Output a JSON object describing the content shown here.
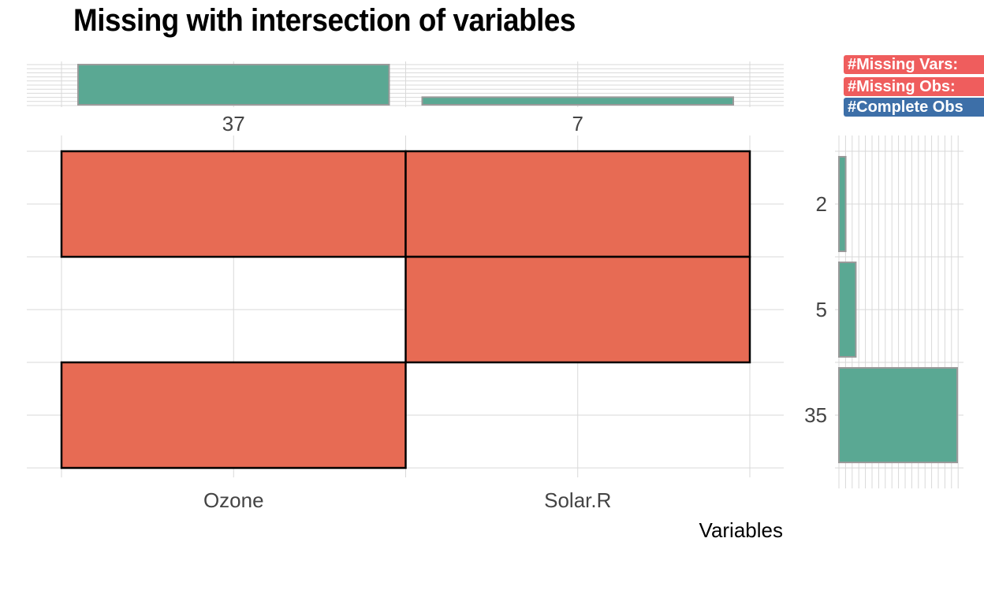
{
  "title": "Missing with intersection of variables",
  "badges": {
    "missing_vars": "#Missing Vars:",
    "missing_obs": "#Missing Obs:",
    "complete_obs": "#Complete Obs"
  },
  "colors": {
    "cell_missing": "#e76b54",
    "bar": "#5aa893",
    "bar_outline": "#9a9a9a",
    "badge_red": "#ef5d5d",
    "badge_blue": "#3d6fa8",
    "grid": "#d9d9d9",
    "text": "#444444"
  },
  "chart_data": [
    {
      "type": "heatmap",
      "title": "Missing with intersection of variables",
      "xlabel": "Variables",
      "ylabel": "",
      "x": [
        "Ozone",
        "Solar.R"
      ],
      "rows": 3,
      "matrix": [
        [
          1,
          1
        ],
        [
          0,
          1
        ],
        [
          1,
          0
        ]
      ],
      "legend": "none"
    },
    {
      "type": "bar",
      "orientation": "vertical",
      "categories": [
        "Ozone",
        "Solar.R"
      ],
      "values": [
        37,
        7
      ],
      "ylim": [
        0,
        37
      ]
    },
    {
      "type": "bar",
      "orientation": "horizontal",
      "categories": [
        "2",
        "5",
        "35"
      ],
      "values": [
        2,
        5,
        35
      ],
      "xlim": [
        0,
        35
      ]
    }
  ]
}
